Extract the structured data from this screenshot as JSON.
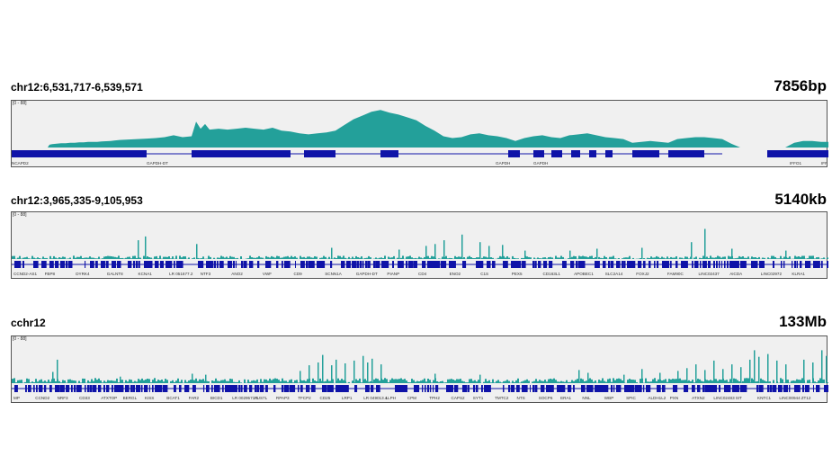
{
  "tracks": [
    {
      "locus": "chr12:6,531,717-6,539,571",
      "span": "7856bp",
      "scale": "[0 - 88]",
      "genes": [
        "NCAPD2",
        "GAPDH-DT",
        "GAPDH",
        "GAPDH",
        "IFFO1",
        "IFF"
      ]
    },
    {
      "locus": "chr12:3,965,335-9,105,953",
      "span": "5140kb",
      "scale": "[0 - 88]",
      "genes": [
        "CCND2-AS1",
        "FBP8",
        "DYRK4",
        "GALNT8",
        "KCNA1",
        "LR 051677.2",
        "NTF3",
        "ANO2",
        "VWF",
        "CD9",
        "SCNN1A",
        "GAPDH-DT",
        "PIANP",
        "CD4",
        "ENO2",
        "C1S",
        "PEX5",
        "CD163L1",
        "APOBEC1",
        "SLC2A14",
        "FOXJ2",
        "FAM90C",
        "LINC02437",
        "AICDA",
        "LINC02972",
        "KLRA1"
      ]
    },
    {
      "locus": "cchr12",
      "span": "133Mb",
      "scale": "[0 - 88]",
      "genes": [
        "MP",
        "CCND2",
        "NRF3",
        "CD33",
        "ATXTOP",
        "BERGL",
        "KISS",
        "BCAT1",
        "FAR2",
        "BICD1",
        "LR 0029571.1",
        "PUS7L",
        "RPAP3",
        "TFCP2",
        "CD25",
        "LRP1",
        "LR 049013.4",
        "LLPH",
        "CPM",
        "TPH2",
        "CAPS2",
        "SYT1",
        "TMTC2",
        "NTS",
        "SOCP6",
        "ERA1",
        "NNL",
        "WBP",
        "SPIC",
        "ALDH1L2",
        "PXN",
        "ATXN2",
        "LINC02483",
        "SIT",
        "KNTC1",
        "LINC00944",
        "ZT12"
      ]
    }
  ],
  "colors": {
    "signal": "#23a09a",
    "gene": "#0f13a8",
    "panel_bg": "#f0f0f0"
  },
  "chart_data": [
    {
      "type": "area",
      "title": "chr12:6,531,717-6,539,571",
      "subtitle": "7856bp",
      "ylim": [
        0,
        88
      ],
      "x": [
        0,
        10,
        20,
        30,
        40,
        42,
        45,
        50,
        55,
        60,
        65,
        70,
        75,
        80,
        85,
        90,
        95,
        100,
        110,
        120,
        130,
        140,
        150,
        160,
        170,
        180,
        190,
        200,
        205,
        210,
        215,
        220,
        230,
        240,
        250,
        260,
        270,
        280,
        290,
        300,
        310,
        320,
        330,
        340,
        350,
        360,
        370,
        380,
        390,
        400,
        410,
        420,
        430,
        440,
        450,
        460,
        470,
        480,
        490,
        500,
        510,
        520,
        530,
        540,
        550,
        560,
        570,
        580,
        590,
        600,
        610,
        620,
        630,
        640,
        650,
        660,
        670,
        680,
        690,
        700,
        710,
        720,
        730,
        740,
        750,
        760,
        770,
        780,
        790,
        800,
        810,
        820,
        830,
        840,
        850,
        860,
        870,
        880,
        890,
        900,
        908
      ],
      "values": [
        0,
        0,
        0,
        0,
        0,
        6,
        7,
        8,
        9,
        9,
        10,
        10,
        11,
        11,
        12,
        12,
        12,
        13,
        14,
        16,
        17,
        18,
        19,
        20,
        22,
        26,
        22,
        24,
        55,
        40,
        50,
        38,
        40,
        38,
        40,
        42,
        40,
        38,
        42,
        36,
        34,
        30,
        28,
        30,
        32,
        36,
        48,
        60,
        68,
        76,
        80,
        74,
        70,
        64,
        58,
        46,
        36,
        24,
        20,
        22,
        28,
        30,
        26,
        24,
        20,
        14,
        20,
        24,
        26,
        22,
        20,
        26,
        28,
        30,
        26,
        22,
        20,
        18,
        10,
        12,
        14,
        12,
        10,
        18,
        20,
        22,
        22,
        20,
        18,
        8,
        0,
        0,
        0,
        0,
        0,
        0,
        10,
        14,
        14,
        12,
        12
      ]
    },
    {
      "type": "area",
      "title": "chr12:3,965,335-9,105,953",
      "subtitle": "5140kb",
      "ylim": [
        0,
        88
      ],
      "note": "dense low signal with sparse peaks",
      "peaks_x": [
        140,
        148,
        205,
        355,
        430,
        460,
        470,
        480,
        500,
        520,
        530,
        545,
        570,
        620,
        650,
        700,
        755,
        770,
        800,
        860
      ],
      "peaks_y": [
        40,
        48,
        32,
        24,
        20,
        28,
        32,
        40,
        52,
        36,
        28,
        30,
        18,
        18,
        22,
        24,
        36,
        64,
        22,
        18
      ]
    },
    {
      "type": "area",
      "title": "cchr12",
      "subtitle": "133Mb",
      "ylim": [
        0,
        88
      ],
      "note": "whole-chromosome coverage",
      "peaks_x": [
        45,
        50,
        120,
        200,
        215,
        320,
        330,
        340,
        345,
        355,
        360,
        370,
        380,
        390,
        395,
        400,
        410,
        470,
        520,
        630,
        640,
        680,
        700,
        720,
        740,
        750,
        760,
        770,
        780,
        790,
        800,
        810,
        820,
        825,
        830,
        840,
        850,
        860,
        880,
        890,
        900,
        905
      ],
      "peaks_y": [
        24,
        50,
        14,
        20,
        18,
        26,
        38,
        44,
        60,
        38,
        50,
        42,
        48,
        58,
        44,
        52,
        40,
        20,
        18,
        28,
        22,
        18,
        30,
        22,
        26,
        32,
        40,
        28,
        48,
        30,
        40,
        34,
        50,
        70,
        56,
        62,
        48,
        40,
        50,
        44,
        70,
        58
      ]
    }
  ]
}
